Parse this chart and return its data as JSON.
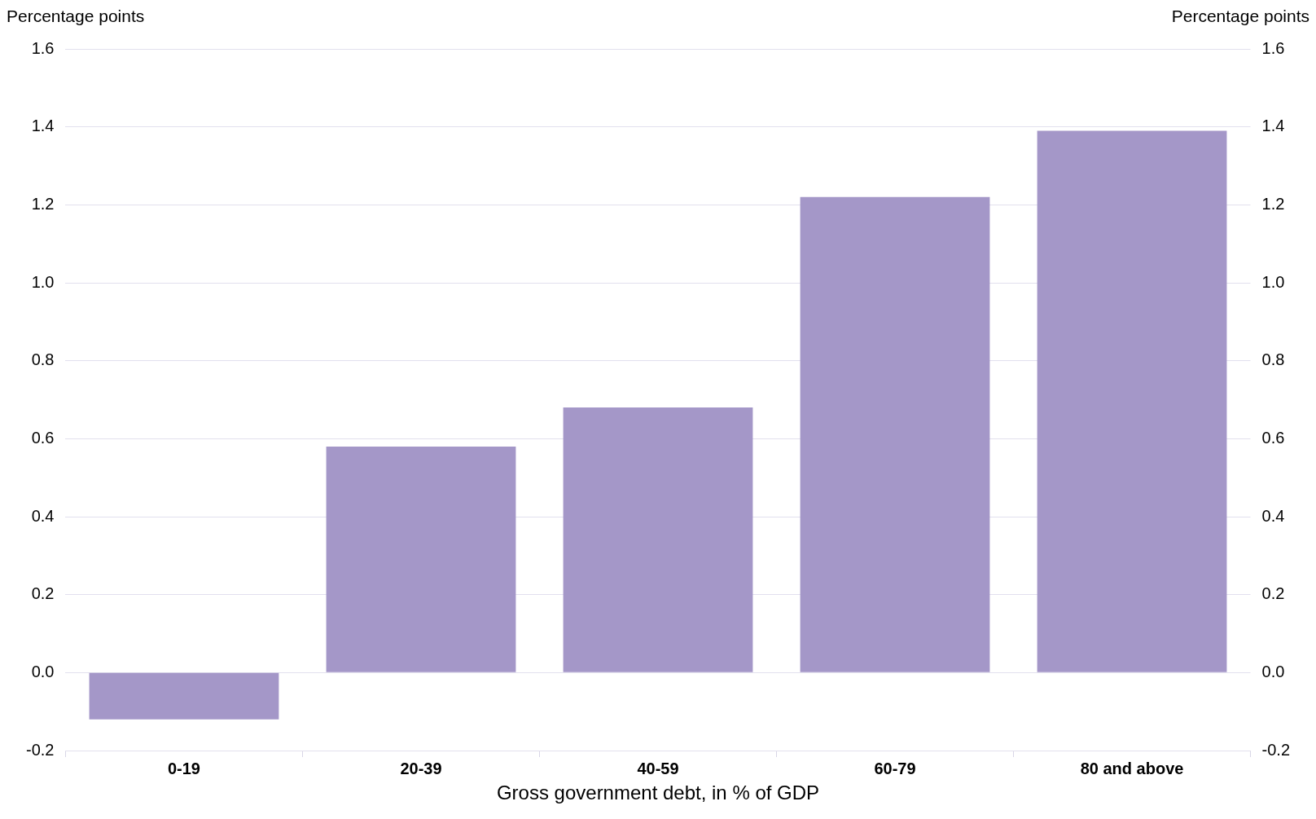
{
  "chart_data": {
    "type": "bar",
    "xlabel": "Gross government debt, in % of GDP",
    "ylabel": "Percentage points",
    "y2label": "Percentage points",
    "categories": [
      "0-19",
      "20-39",
      "40-59",
      "60-79",
      "80 and above"
    ],
    "values": [
      -0.12,
      0.58,
      0.68,
      1.22,
      1.39
    ],
    "color": "#a497c8",
    "ylim": [
      -0.2,
      1.6
    ],
    "yticks": [
      {
        "value": -0.2,
        "label": "-0.2"
      },
      {
        "value": 0,
        "label": "0.0"
      },
      {
        "value": 0.2,
        "label": "0.2"
      },
      {
        "value": 0.4,
        "label": "0.4"
      },
      {
        "value": 0.6,
        "label": "0.6"
      },
      {
        "value": 0.8,
        "label": "0.8"
      },
      {
        "value": 1,
        "label": "1.0"
      },
      {
        "value": 1.2,
        "label": "1.2"
      },
      {
        "value": 1.4,
        "label": "1.4"
      },
      {
        "value": 1.6,
        "label": "1.6"
      }
    ],
    "y2lim": [
      -0.2,
      1.6
    ],
    "y2ticks": [
      {
        "value": -0.2,
        "label": "-0.2"
      },
      {
        "value": 0,
        "label": "0.0"
      },
      {
        "value": 0.2,
        "label": "0.2"
      },
      {
        "value": 0.4,
        "label": "0.4"
      },
      {
        "value": 0.6,
        "label": "0.6"
      },
      {
        "value": 0.8,
        "label": "0.8"
      },
      {
        "value": 1,
        "label": "1.0"
      },
      {
        "value": 1.2,
        "label": "1.2"
      },
      {
        "value": 1.4,
        "label": "1.4"
      },
      {
        "value": 1.6,
        "label": "1.6"
      }
    ],
    "grid": "y",
    "legend": false
  }
}
